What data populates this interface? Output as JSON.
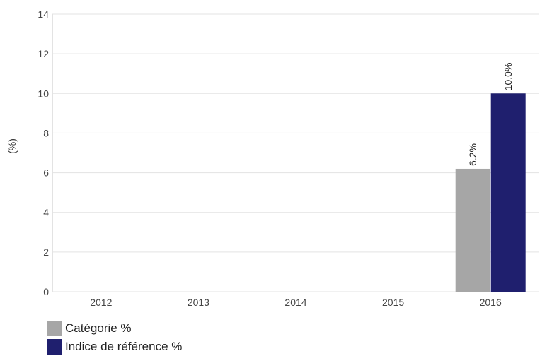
{
  "chart_data": {
    "type": "bar",
    "categories": [
      "2012",
      "2013",
      "2014",
      "2015",
      "2016"
    ],
    "series": [
      {
        "name": "Catégorie %",
        "values": [
          null,
          null,
          null,
          null,
          6.2
        ],
        "labels": [
          null,
          null,
          null,
          null,
          "6.2%"
        ],
        "color": "#a6a6a6"
      },
      {
        "name": "Indice de référence %",
        "values": [
          null,
          null,
          null,
          null,
          10.0
        ],
        "labels": [
          null,
          null,
          null,
          null,
          "10.0%"
        ],
        "color": "#1f1f6e"
      }
    ],
    "ylabel": "(%)",
    "ylim": [
      0,
      14
    ],
    "yticks": [
      0,
      2,
      4,
      6,
      8,
      10,
      12,
      14
    ],
    "grid": true,
    "legend_position": "bottom-left"
  }
}
